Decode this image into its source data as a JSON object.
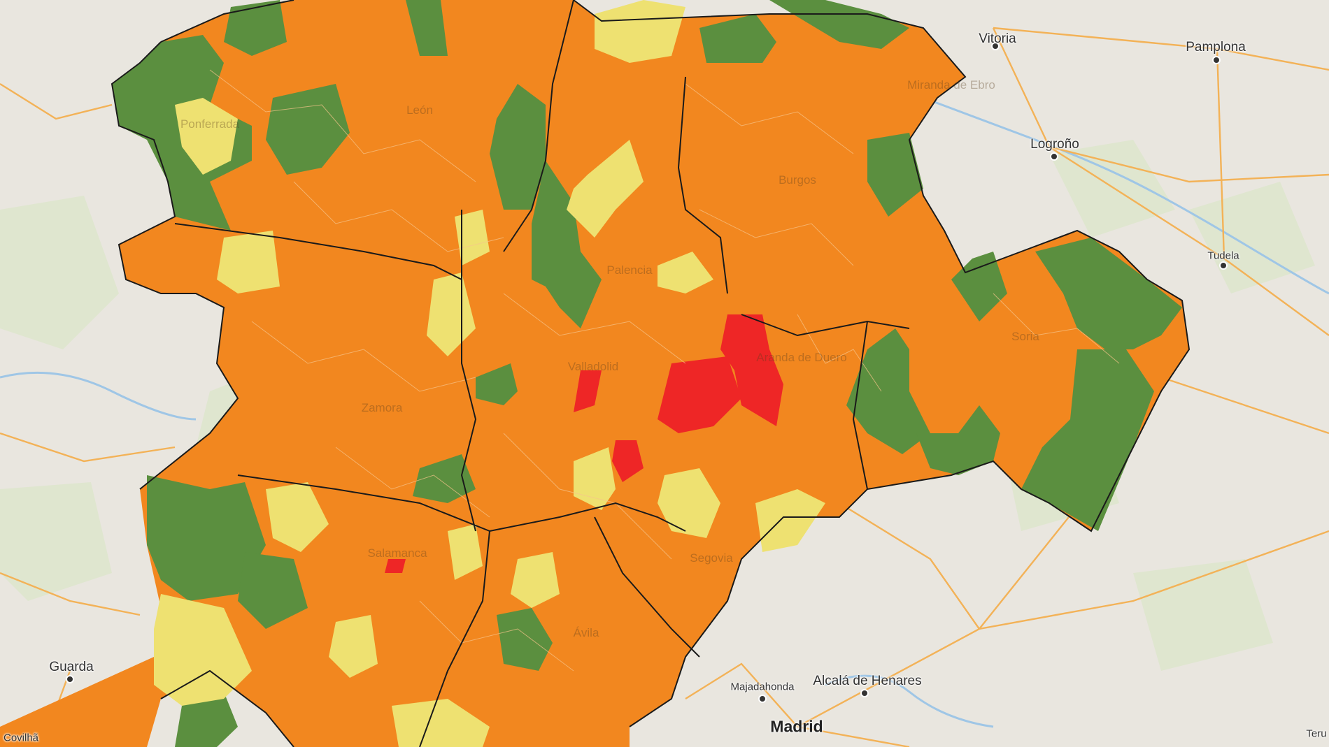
{
  "colors": {
    "background": "#e9e6df",
    "orange": "#f2871f",
    "green": "#5b8f3f",
    "yellow": "#eee171",
    "red": "#ee2626",
    "road": "#f3b257",
    "water": "#9fc6e6",
    "border": "#1a1a1a"
  },
  "legend_levels": [
    "orange",
    "green",
    "yellow",
    "red"
  ],
  "cities": [
    {
      "key": "vitoria",
      "name": "Vitoria"
    },
    {
      "key": "pamplona",
      "name": "Pamplona"
    },
    {
      "key": "logrono",
      "name": "Logroño"
    },
    {
      "key": "tudela",
      "name": "Tudela"
    },
    {
      "key": "guarda",
      "name": "Guarda"
    },
    {
      "key": "covilha",
      "name": "Covilhã"
    },
    {
      "key": "majadahonda",
      "name": "Majadahonda"
    },
    {
      "key": "alcala",
      "name": "Alcalá de Henares"
    },
    {
      "key": "madrid",
      "name": "Madrid"
    },
    {
      "key": "teruel",
      "name": "Teru"
    }
  ],
  "region_labels": [
    {
      "key": "leon",
      "name": "León"
    },
    {
      "key": "burgos",
      "name": "Burgos"
    },
    {
      "key": "palencia",
      "name": "Palencia"
    },
    {
      "key": "valladolid",
      "name": "Valladolid"
    },
    {
      "key": "zamora",
      "name": "Zamora"
    },
    {
      "key": "salamanca",
      "name": "Salamanca"
    },
    {
      "key": "segovia",
      "name": "Segovia"
    },
    {
      "key": "avila",
      "name": "Ávila"
    },
    {
      "key": "soria",
      "name": "Soria"
    },
    {
      "key": "aranda",
      "name": "Aranda de Duero"
    },
    {
      "key": "ponferrada",
      "name": "Ponferrada"
    },
    {
      "key": "miranda",
      "name": "Miranda de Ebro"
    }
  ]
}
